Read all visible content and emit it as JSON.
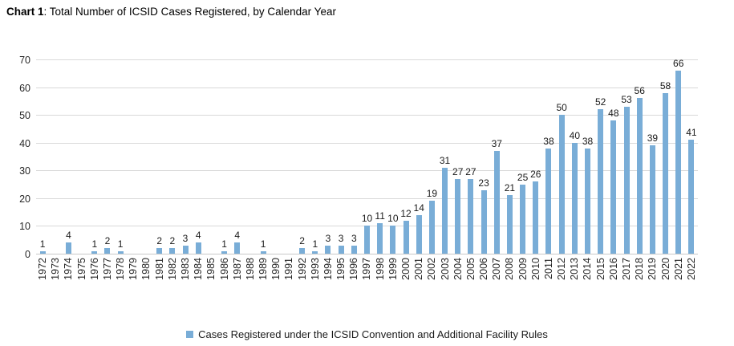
{
  "title": {
    "prefix": "Chart 1",
    "rest": ": Total Number of ICSID Cases Registered, by Calendar Year"
  },
  "legend": {
    "label": "Cases Registered under the ICSID Convention and Additional Facility Rules"
  },
  "colors": {
    "bar": "#79add7",
    "gridline": "#d9d9d9",
    "baseline": "#c9c9c9",
    "text": "#262626"
  },
  "chart_data": {
    "type": "bar",
    "title": "Chart 1: Total Number of ICSID Cases Registered, by Calendar Year",
    "categories": [
      "1972",
      "1973",
      "1974",
      "1975",
      "1976",
      "1977",
      "1978",
      "1979",
      "1980",
      "1981",
      "1982",
      "1983",
      "1984",
      "1985",
      "1986",
      "1987",
      "1988",
      "1989",
      "1990",
      "1991",
      "1992",
      "1993",
      "1994",
      "1995",
      "1996",
      "1997",
      "1998",
      "1999",
      "2000",
      "2001",
      "2002",
      "2003",
      "2004",
      "2005",
      "2006",
      "2007",
      "2008",
      "2009",
      "2010",
      "2011",
      "2012",
      "2013",
      "2014",
      "2015",
      "2016",
      "2017",
      "2018",
      "2019",
      "2020",
      "2021",
      "2022"
    ],
    "values": [
      1,
      0,
      4,
      0,
      1,
      2,
      1,
      0,
      0,
      2,
      2,
      3,
      4,
      0,
      1,
      4,
      0,
      1,
      0,
      0,
      2,
      1,
      3,
      3,
      3,
      10,
      11,
      10,
      12,
      14,
      19,
      31,
      27,
      27,
      23,
      37,
      21,
      25,
      26,
      38,
      50,
      40,
      38,
      52,
      48,
      53,
      56,
      39,
      58,
      66,
      41
    ],
    "xlabel": "",
    "ylabel": "",
    "ylim": [
      0,
      70
    ],
    "yticks": [
      0,
      10,
      20,
      30,
      40,
      50,
      60,
      70
    ],
    "grid": true,
    "bar_labels": true,
    "legend_position": "bottom",
    "series_name": "Cases Registered under the ICSID Convention and Additional Facility Rules"
  }
}
